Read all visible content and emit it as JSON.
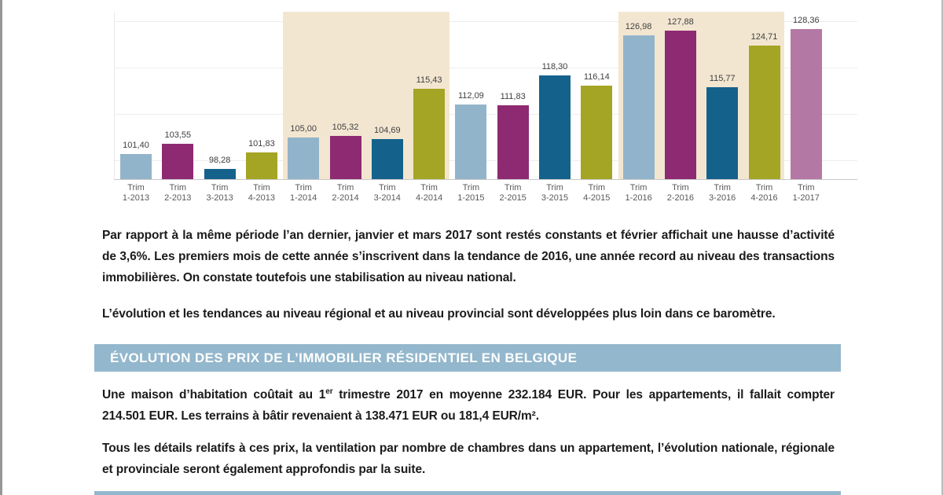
{
  "page": {
    "paragraph1": "Par rapport à la même période l’an dernier, janvier et mars 2017 sont restés constants et février affichait une hausse d’activité de 3,6%. Les premiers mois de cette année s’inscrivent dans la tendance de 2016, une année record au niveau des transactions immobilières. On constate toutefois une stabilisation au niveau national.",
    "paragraph2": "L’évolution et les tendances au niveau régional et au niveau provincial sont développées plus loin dans ce baromètre.",
    "section_header": "ÉVOLUTION DES PRIX DE L’IMMOBILIER RÉSIDENTIEL EN BELGIQUE",
    "paragraph3_before": "Une maison d’habitation coûtait au 1",
    "paragraph3_sup": "er",
    "paragraph3_after": " trimestre 2017 en moyenne 232.184 EUR. Pour les appartements, il fallait compter 214.501 EUR. Les terrains à bâtir revenaient à 138.471 EUR ou 181,4 EUR/m².",
    "paragraph4": "Tous les détails relatifs à ces prix, la ventilation par nombre de chambres dans un appartement, l’évolution nationale, régionale et provinciale seront également approfondis par la suite."
  },
  "colors": {
    "header_bar": "#93b7cc",
    "highlight_band": "#f3e6d1",
    "gridline": "#ededed",
    "axis_line": "#c9c9c9",
    "value_label": "#404040",
    "tick_label": "#595959",
    "body_text": "#1b1b1b",
    "bar_light_blue": "#92b4cb",
    "bar_purple": "#8e2a72",
    "bar_teal": "#14628c",
    "bar_olive": "#a4a524",
    "bar_mauve": "#b478a5"
  },
  "chart_data": {
    "type": "bar",
    "title": "",
    "xlabel": "",
    "ylabel": "",
    "categories": [
      "Trim 1-2013",
      "Trim 2-2013",
      "Trim 3-2013",
      "Trim 4-2013",
      "Trim 1-2014",
      "Trim 2-2014",
      "Trim 3-2014",
      "Trim 4-2014",
      "Trim 1-2015",
      "Trim 2-2015",
      "Trim 3-2015",
      "Trim 4-2015",
      "Trim 1-2016",
      "Trim 2-2016",
      "Trim 3-2016",
      "Trim 4-2016",
      "Trim 1-2017"
    ],
    "values": [
      101.4,
      103.55,
      98.28,
      101.83,
      105.0,
      105.32,
      104.69,
      115.43,
      112.09,
      111.83,
      118.3,
      116.14,
      126.98,
      127.88,
      115.77,
      124.71,
      128.36
    ],
    "value_labels": [
      "101,40",
      "103,55",
      "98,28",
      "101,83",
      "105,00",
      "105,32",
      "104,69",
      "115,43",
      "112,09",
      "111,83",
      "118,30",
      "116,14",
      "126,98",
      "127,88",
      "115,77",
      "124,71",
      "128,36"
    ],
    "bar_colors": [
      "#92b4cb",
      "#8e2a72",
      "#14628c",
      "#a4a524",
      "#92b4cb",
      "#8e2a72",
      "#14628c",
      "#a4a524",
      "#92b4cb",
      "#8e2a72",
      "#14628c",
      "#a4a524",
      "#92b4cb",
      "#8e2a72",
      "#14628c",
      "#a4a524",
      "#b478a5"
    ],
    "ylim": [
      96,
      132
    ],
    "gridline_values": [
      100,
      110,
      120,
      130
    ],
    "grid": true,
    "legend": false,
    "highlight_color": "#f3e6d1",
    "highlight_groups": [
      {
        "start": 4,
        "end": 7,
        "label": "2014"
      },
      {
        "start": 12,
        "end": 15,
        "label": "2016"
      }
    ]
  }
}
